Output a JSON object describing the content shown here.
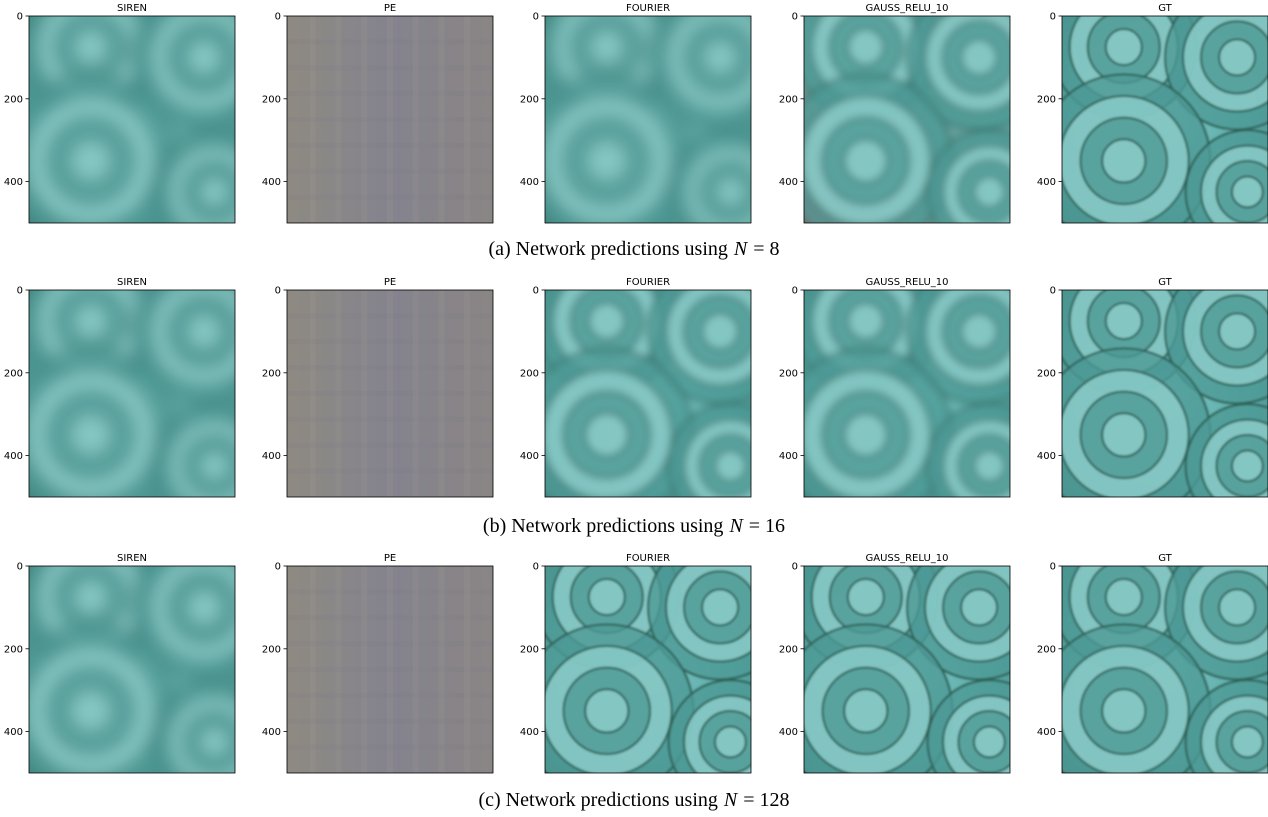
{
  "ylim": [
    0,
    500
  ],
  "yticks": [
    0,
    200,
    400
  ],
  "rows": [
    {
      "titles": [
        "SIREN",
        "PE",
        "FOURIER",
        "GAUSS_RELU_10",
        "GT"
      ],
      "caption": {
        "label": "(a) Network predictions using",
        "var": "N",
        "rest": "= 8"
      }
    },
    {
      "titles": [
        "SIREN",
        "PE",
        "FOURIER",
        "GAUSS_RELU_10",
        "GT"
      ],
      "caption": {
        "label": "(b) Network predictions using",
        "var": "N",
        "rest": "= 16"
      }
    },
    {
      "titles": [
        "SIREN",
        "PE",
        "FOURIER",
        "GAUSS_RELU_10",
        "GT"
      ],
      "caption": {
        "label": "(c) Network predictions using",
        "var": "N",
        "rest": "= 128"
      }
    }
  ]
}
